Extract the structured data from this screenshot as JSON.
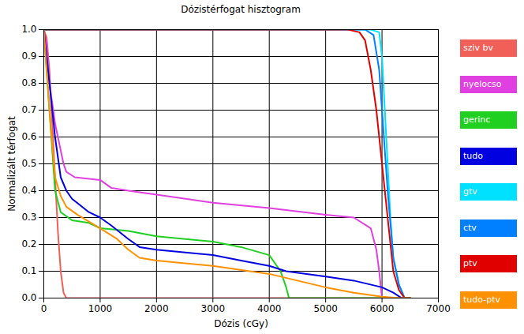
{
  "chart_data": {
    "type": "line",
    "title": "Dózistérfogat hisztogram",
    "x_label": "Dózis (cGy)",
    "y_label": "Normalizált térfogat",
    "xlim": [
      0,
      7000
    ],
    "xticks": [
      0,
      1000,
      2000,
      3000,
      4000,
      5000,
      6000,
      7000
    ],
    "ylim": [
      0,
      1
    ],
    "yticks": [
      {
        "value": 0,
        "label": "0.0"
      },
      0.1,
      0.2,
      0.3,
      0.4,
      0.5,
      0.6,
      0.7,
      0.8,
      0.9,
      {
        "value": 1,
        "label": "1.0"
      }
    ],
    "grid": true,
    "legend": "right",
    "series": [
      {
        "name": "sziv bv",
        "color": "#f06058",
        "x": [
          0,
          50,
          100,
          150,
          200,
          250,
          300,
          350,
          400,
          6500
        ],
        "values": [
          1,
          0.97,
          0.85,
          0.65,
          0.45,
          0.25,
          0.1,
          0.02,
          0,
          0
        ]
      },
      {
        "name": "nyelocso",
        "color": "#e040e0",
        "x": [
          0,
          50,
          100,
          200,
          300,
          350,
          400,
          550,
          1000,
          1200,
          1500,
          2000,
          3000,
          4000,
          5000,
          5500,
          5800,
          5900,
          5950,
          6000,
          6500
        ],
        "values": [
          1,
          0.95,
          0.8,
          0.65,
          0.55,
          0.5,
          0.47,
          0.45,
          0.44,
          0.41,
          0.4,
          0.385,
          0.355,
          0.335,
          0.31,
          0.3,
          0.26,
          0.18,
          0.1,
          0,
          0
        ]
      },
      {
        "name": "gerinc",
        "color": "#20d020",
        "x": [
          0,
          50,
          100,
          200,
          300,
          500,
          800,
          1000,
          1500,
          2000,
          3000,
          3500,
          4000,
          4200,
          4300,
          4350,
          6500
        ],
        "values": [
          1,
          0.85,
          0.7,
          0.4,
          0.32,
          0.29,
          0.28,
          0.26,
          0.25,
          0.23,
          0.21,
          0.19,
          0.16,
          0.1,
          0.04,
          0,
          0
        ]
      },
      {
        "name": "tudo",
        "color": "#0000e0",
        "x": [
          0,
          100,
          200,
          300,
          400,
          500,
          800,
          1000,
          1200,
          1500,
          1700,
          2000,
          3000,
          3500,
          4000,
          4300,
          5000,
          5500,
          6000,
          6200,
          6350,
          6500
        ],
        "values": [
          1,
          0.8,
          0.6,
          0.45,
          0.4,
          0.37,
          0.32,
          0.3,
          0.27,
          0.22,
          0.19,
          0.18,
          0.16,
          0.14,
          0.12,
          0.1,
          0.08,
          0.065,
          0.04,
          0.02,
          0,
          0
        ]
      },
      {
        "name": "gtv",
        "color": "#00e0ff",
        "x": [
          0,
          5800,
          5950,
          6000,
          6050,
          6100,
          6150,
          6200,
          6300,
          6400,
          6500
        ],
        "values": [
          1,
          1,
          0.99,
          0.9,
          0.7,
          0.5,
          0.3,
          0.15,
          0.05,
          0,
          0
        ]
      },
      {
        "name": "ctv",
        "color": "#0080ff",
        "x": [
          0,
          5700,
          5850,
          5950,
          6000,
          6050,
          6100,
          6200,
          6300,
          6400,
          6500
        ],
        "values": [
          1,
          1,
          0.98,
          0.85,
          0.7,
          0.55,
          0.4,
          0.15,
          0.05,
          0,
          0
        ]
      },
      {
        "name": "ptv",
        "color": "#e00000",
        "x": [
          0,
          5400,
          5600,
          5700,
          5800,
          5900,
          6000,
          6100,
          6200,
          6300,
          6400,
          6500
        ],
        "values": [
          1,
          1,
          0.99,
          0.96,
          0.85,
          0.7,
          0.5,
          0.3,
          0.1,
          0.03,
          0,
          0
        ]
      },
      {
        "name": "tudo-ptv",
        "color": "#ff9000",
        "x": [
          0,
          100,
          200,
          300,
          400,
          600,
          1000,
          1300,
          1500,
          1700,
          2000,
          3000,
          4000,
          5000,
          5500,
          6000,
          6300,
          6500
        ],
        "values": [
          1,
          0.7,
          0.45,
          0.38,
          0.34,
          0.31,
          0.26,
          0.22,
          0.18,
          0.15,
          0.14,
          0.12,
          0.09,
          0.04,
          0.02,
          0.005,
          0,
          0
        ]
      }
    ]
  }
}
